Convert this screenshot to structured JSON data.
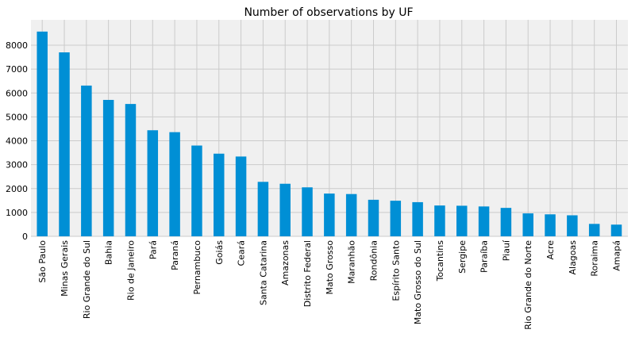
{
  "chart_data": {
    "type": "bar",
    "title": "Number of observations by UF",
    "xlabel": "",
    "ylabel": "",
    "categories": [
      "São Paulo",
      "Minas Gerais",
      "Rio Grande do Sul",
      "Bahia",
      "Rio de Janeiro",
      "Pará",
      "Paraná",
      "Pernambuco",
      "Goiás",
      "Ceará",
      "Santa Catarina",
      "Amazonas",
      "Distrito Federal",
      "Mato Grosso",
      "Maranhão",
      "Rondônia",
      "Espírito Santo",
      "Mato Grosso do Sul",
      "Tocantins",
      "Sergipe",
      "Paraíba",
      "Piauí",
      "Rio Grande do Norte",
      "Acre",
      "Alagoas",
      "Roraima",
      "Amapá"
    ],
    "values": [
      8570,
      7700,
      6310,
      5710,
      5540,
      4440,
      4360,
      3800,
      3460,
      3340,
      2280,
      2200,
      2050,
      1790,
      1770,
      1530,
      1490,
      1430,
      1290,
      1280,
      1250,
      1190,
      960,
      920,
      880,
      520,
      490
    ],
    "ylim": [
      0,
      9000
    ],
    "yticks": [
      0,
      1000,
      2000,
      3000,
      4000,
      5000,
      6000,
      7000,
      8000
    ],
    "grid": true,
    "colors": {
      "bar": "#008fd5",
      "plot_bg": "#f0f0f0",
      "grid": "#cbcbcb",
      "text": "#000000"
    }
  }
}
